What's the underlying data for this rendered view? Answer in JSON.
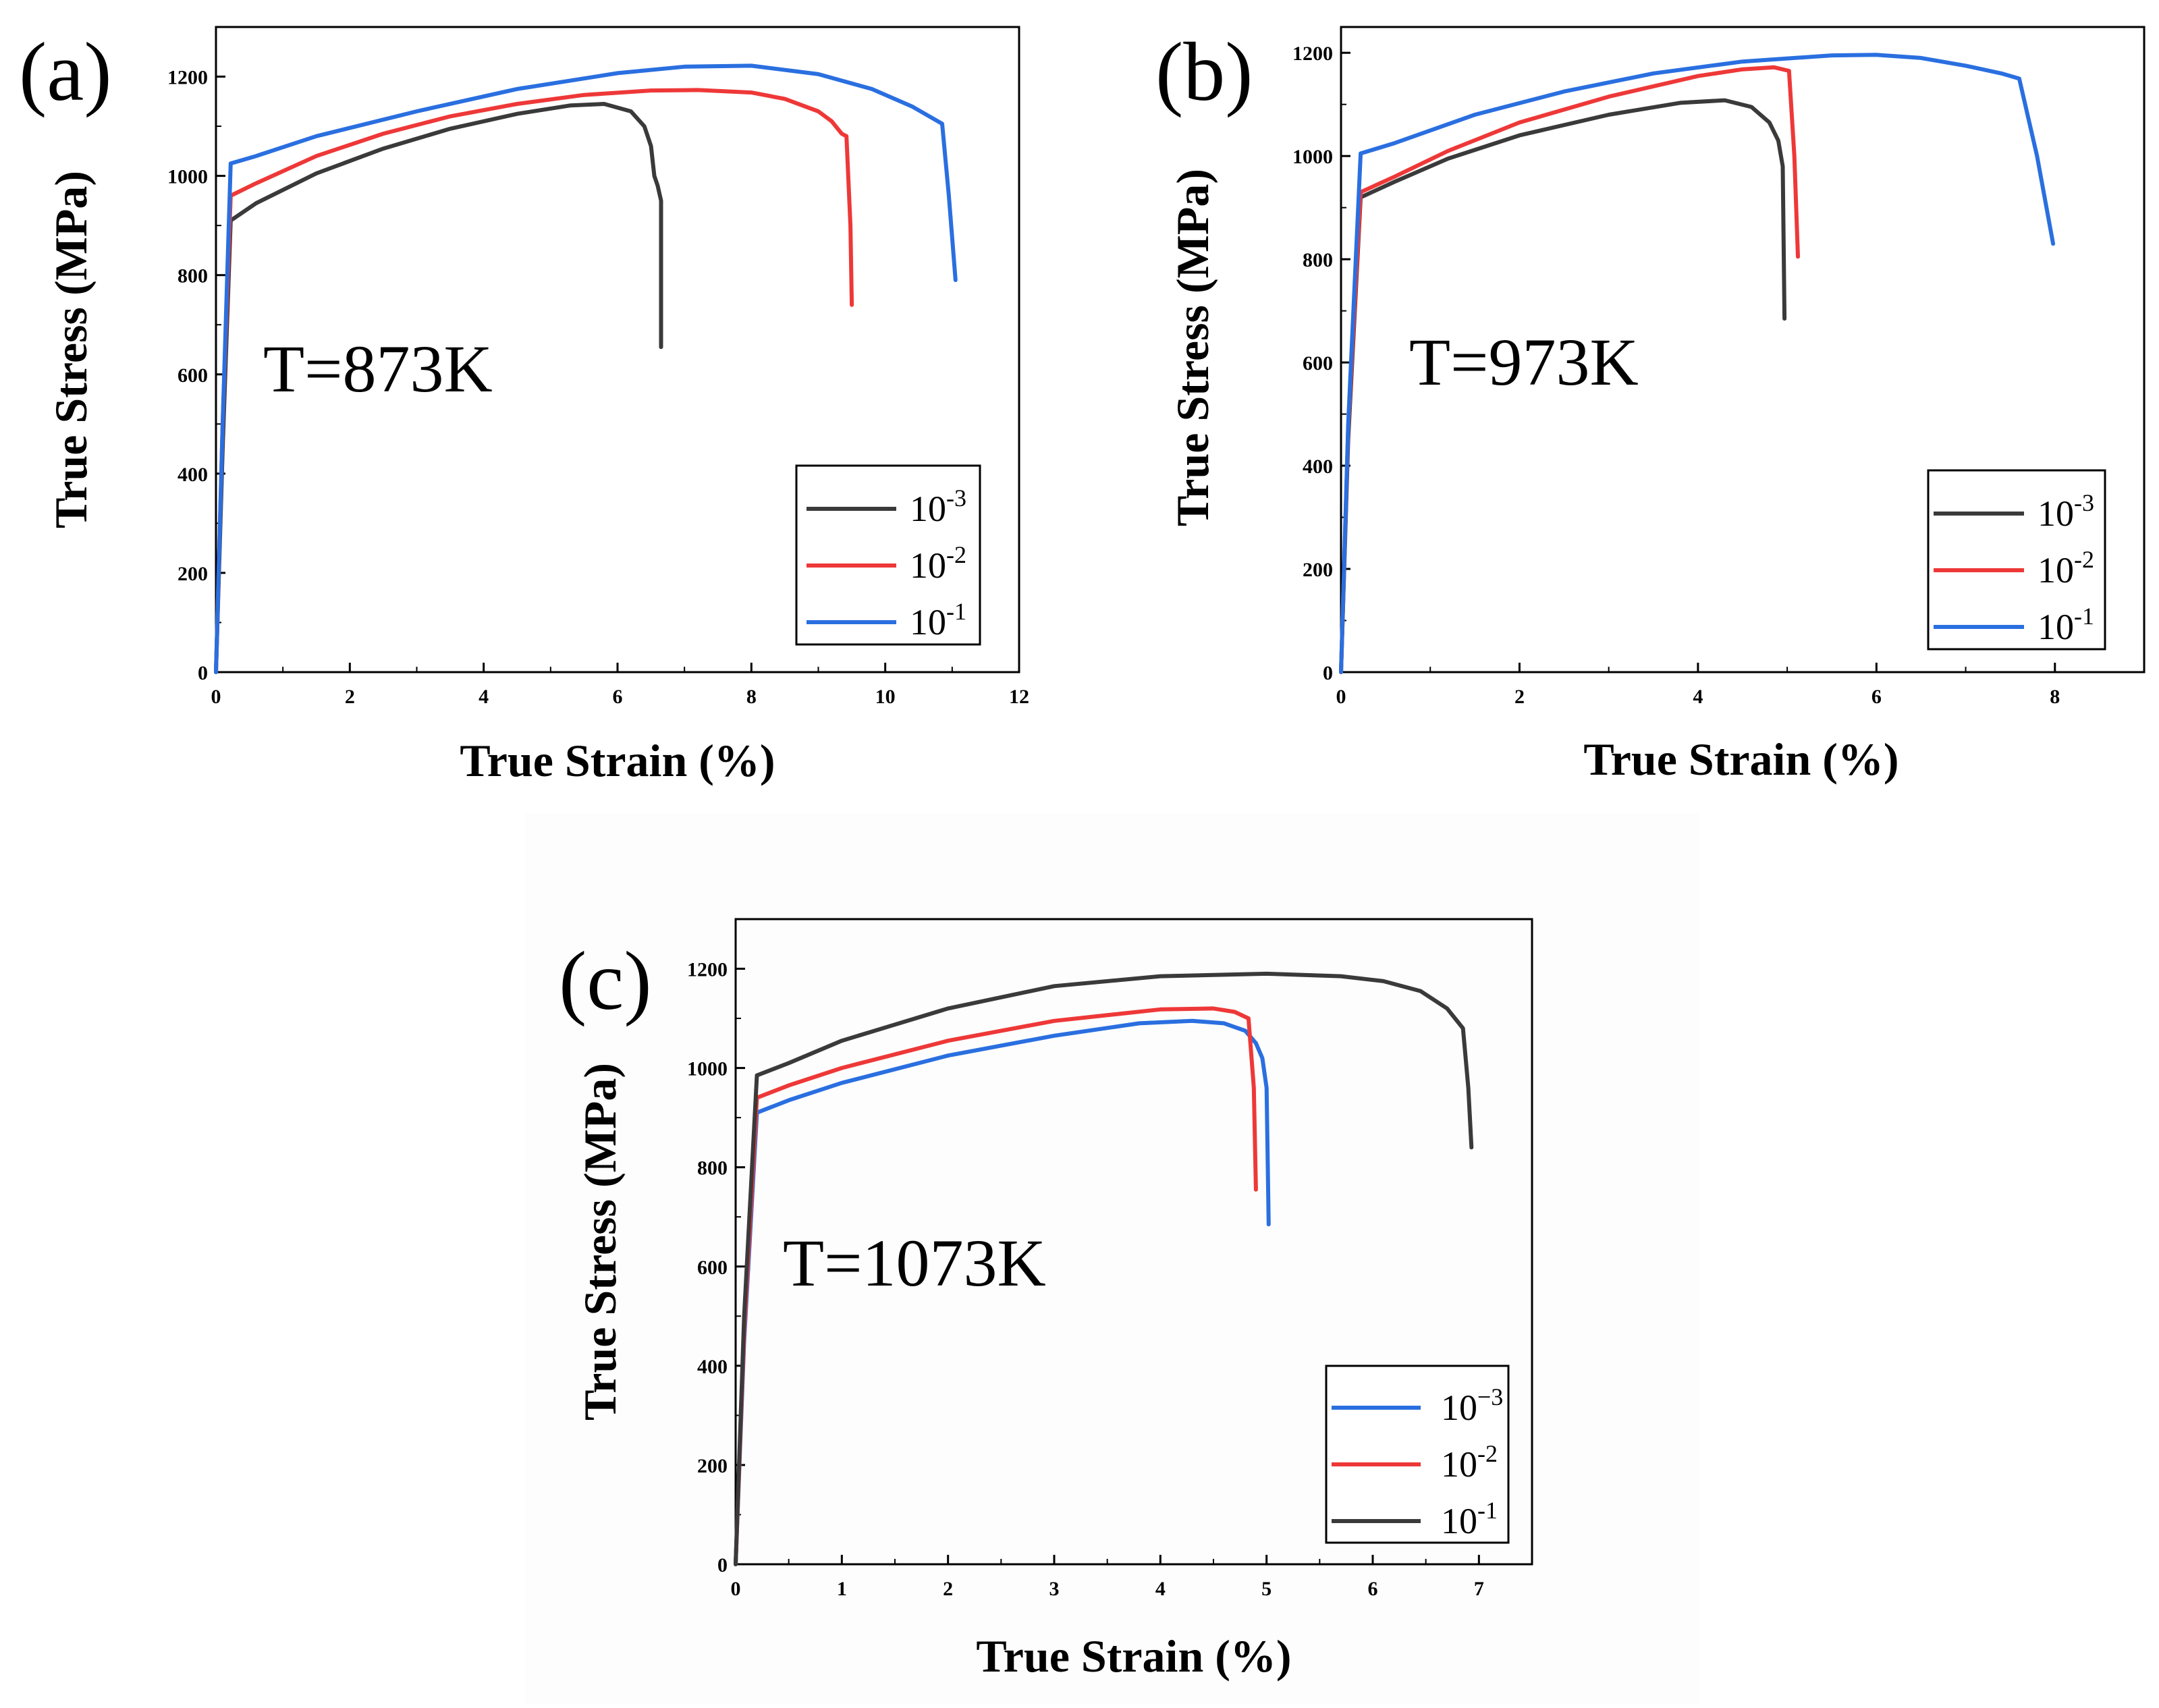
{
  "figure": {
    "colors": {
      "black": "#3a3a3a",
      "red": "#ee3838",
      "blue": "#2a6fe0",
      "axis": "#000000"
    }
  },
  "chart_data": [
    {
      "type": "line",
      "panel_label": "(a)",
      "annotation": "T=873K",
      "xlabel": "True Strain (%)",
      "ylabel": "True Stress (MPa)",
      "xlim": [
        0,
        12
      ],
      "ylim": [
        0,
        1300
      ],
      "xticks": [
        0,
        2,
        4,
        6,
        8,
        10,
        12
      ],
      "xtick_labels": [
        "0",
        "2",
        "4",
        "6",
        "8",
        "10",
        "12"
      ],
      "yticks": [
        0,
        200,
        400,
        600,
        800,
        1000,
        1200
      ],
      "ytick_labels": [
        "0",
        "200",
        "400",
        "600",
        "800",
        "1000",
        "1200"
      ],
      "legend": [
        {
          "base": "10",
          "exp": "-3",
          "color": "#3a3a3a"
        },
        {
          "base": "10",
          "exp": "-2",
          "color": "#ee3838"
        },
        {
          "base": "10",
          "exp": "-1",
          "color": "#2a6fe0"
        }
      ],
      "series": [
        {
          "name": "10^-3",
          "color": "#3a3a3a",
          "x": [
            0,
            0.1,
            0.22,
            0.6,
            1.5,
            2.5,
            3.5,
            4.5,
            5.3,
            5.8,
            6.2,
            6.4,
            6.5,
            6.55,
            6.6,
            6.65,
            6.65
          ],
          "y": [
            0,
            450,
            910,
            945,
            1005,
            1055,
            1095,
            1125,
            1142,
            1145,
            1130,
            1100,
            1060,
            1000,
            980,
            950,
            655
          ]
        },
        {
          "name": "10^-2",
          "color": "#ee3838",
          "x": [
            0,
            0.1,
            0.22,
            0.6,
            1.5,
            2.5,
            3.5,
            4.5,
            5.5,
            6.5,
            7.2,
            8,
            8.5,
            9,
            9.2,
            9.35,
            9.42,
            9.48,
            9.5
          ],
          "y": [
            0,
            500,
            960,
            985,
            1040,
            1085,
            1120,
            1145,
            1163,
            1172,
            1173,
            1168,
            1155,
            1130,
            1110,
            1085,
            1080,
            900,
            740
          ]
        },
        {
          "name": "10^-1",
          "color": "#2a6fe0",
          "x": [
            0,
            0.1,
            0.22,
            0.6,
            1.5,
            3,
            4.5,
            6,
            7,
            8,
            9,
            9.8,
            10.4,
            10.85,
            10.95,
            11.05
          ],
          "y": [
            0,
            500,
            1025,
            1040,
            1080,
            1130,
            1175,
            1207,
            1220,
            1222,
            1205,
            1175,
            1140,
            1105,
            960,
            790
          ]
        }
      ]
    },
    {
      "type": "line",
      "panel_label": "(b)",
      "annotation": "T=973K",
      "xlabel": "True Strain (%)",
      "ylabel": "True Stress (MPa)",
      "xlim": [
        0,
        9
      ],
      "ylim": [
        0,
        1250
      ],
      "xticks": [
        0,
        2,
        4,
        6,
        8
      ],
      "xtick_labels": [
        "0",
        "2",
        "4",
        "6",
        "8"
      ],
      "yticks": [
        0,
        200,
        400,
        600,
        800,
        1000,
        1200
      ],
      "ytick_labels": [
        "0",
        "200",
        "400",
        "600",
        "800",
        "1000",
        "1200"
      ],
      "legend": [
        {
          "base": "10",
          "exp": "-3",
          "color": "#3a3a3a"
        },
        {
          "base": "10",
          "exp": "-2",
          "color": "#ee3838"
        },
        {
          "base": "10",
          "exp": "-1",
          "color": "#2a6fe0"
        }
      ],
      "series": [
        {
          "name": "10^-3",
          "color": "#3a3a3a",
          "x": [
            0,
            0.08,
            0.22,
            0.6,
            1.2,
            2,
            3,
            3.8,
            4.3,
            4.6,
            4.8,
            4.9,
            4.95,
            4.97
          ],
          "y": [
            0,
            450,
            920,
            950,
            995,
            1040,
            1080,
            1103,
            1108,
            1095,
            1065,
            1030,
            980,
            685
          ]
        },
        {
          "name": "10^-2",
          "color": "#ee3838",
          "x": [
            0,
            0.08,
            0.22,
            0.6,
            1.2,
            2,
            3,
            4,
            4.5,
            4.85,
            5.02,
            5.08,
            5.12
          ],
          "y": [
            0,
            470,
            930,
            960,
            1010,
            1065,
            1115,
            1155,
            1168,
            1172,
            1165,
            1000,
            805
          ]
        },
        {
          "name": "10^-1",
          "color": "#2a6fe0",
          "x": [
            0,
            0.08,
            0.22,
            0.6,
            1.5,
            2.5,
            3.5,
            4.5,
            5.5,
            6,
            6.5,
            7,
            7.4,
            7.6,
            7.8,
            7.98
          ],
          "y": [
            0,
            480,
            1005,
            1025,
            1080,
            1125,
            1160,
            1183,
            1195,
            1196,
            1190,
            1175,
            1160,
            1150,
            1000,
            830
          ]
        }
      ]
    },
    {
      "type": "line",
      "panel_label": "(c)",
      "annotation": "T=1073K",
      "xlabel": "True Strain (%)",
      "ylabel": "True Stress (MPa)",
      "xlim": [
        0,
        7.5
      ],
      "ylim": [
        0,
        1300
      ],
      "xticks": [
        0,
        1,
        2,
        3,
        4,
        5,
        6,
        7
      ],
      "xtick_labels": [
        "0",
        "1",
        "2",
        "3",
        "4",
        "5",
        "6",
        "7"
      ],
      "yticks": [
        0,
        200,
        400,
        600,
        800,
        1000,
        1200
      ],
      "ytick_labels": [
        "0",
        "200",
        "400",
        "600",
        "800",
        "1000",
        "1200"
      ],
      "legend": [
        {
          "base": "10",
          "exp": "−3",
          "color": "#2a6fe0"
        },
        {
          "base": "10",
          "exp": "-2",
          "color": "#ee3838"
        },
        {
          "base": "10",
          "exp": "-1",
          "color": "#3a3a3a"
        }
      ],
      "series": [
        {
          "name": "10^-3",
          "color": "#2a6fe0",
          "x": [
            0,
            0.08,
            0.2,
            0.5,
            1,
            2,
            3,
            3.8,
            4.3,
            4.6,
            4.8,
            4.9,
            4.96,
            5,
            5.02
          ],
          "y": [
            0,
            450,
            910,
            935,
            970,
            1025,
            1065,
            1090,
            1095,
            1090,
            1075,
            1050,
            1020,
            960,
            685
          ]
        },
        {
          "name": "10^-2",
          "color": "#ee3838",
          "x": [
            0,
            0.08,
            0.2,
            0.5,
            1,
            2,
            3,
            4,
            4.5,
            4.7,
            4.83,
            4.88,
            4.9
          ],
          "y": [
            0,
            470,
            940,
            965,
            1000,
            1055,
            1095,
            1118,
            1120,
            1113,
            1100,
            960,
            755
          ]
        },
        {
          "name": "10^-1",
          "color": "#3a3a3a",
          "x": [
            0,
            0.08,
            0.2,
            0.5,
            1,
            2,
            3,
            4,
            5,
            5.7,
            6.1,
            6.45,
            6.7,
            6.85,
            6.9,
            6.93
          ],
          "y": [
            0,
            500,
            985,
            1010,
            1055,
            1120,
            1165,
            1185,
            1190,
            1185,
            1175,
            1155,
            1120,
            1080,
            960,
            840
          ]
        }
      ]
    }
  ]
}
